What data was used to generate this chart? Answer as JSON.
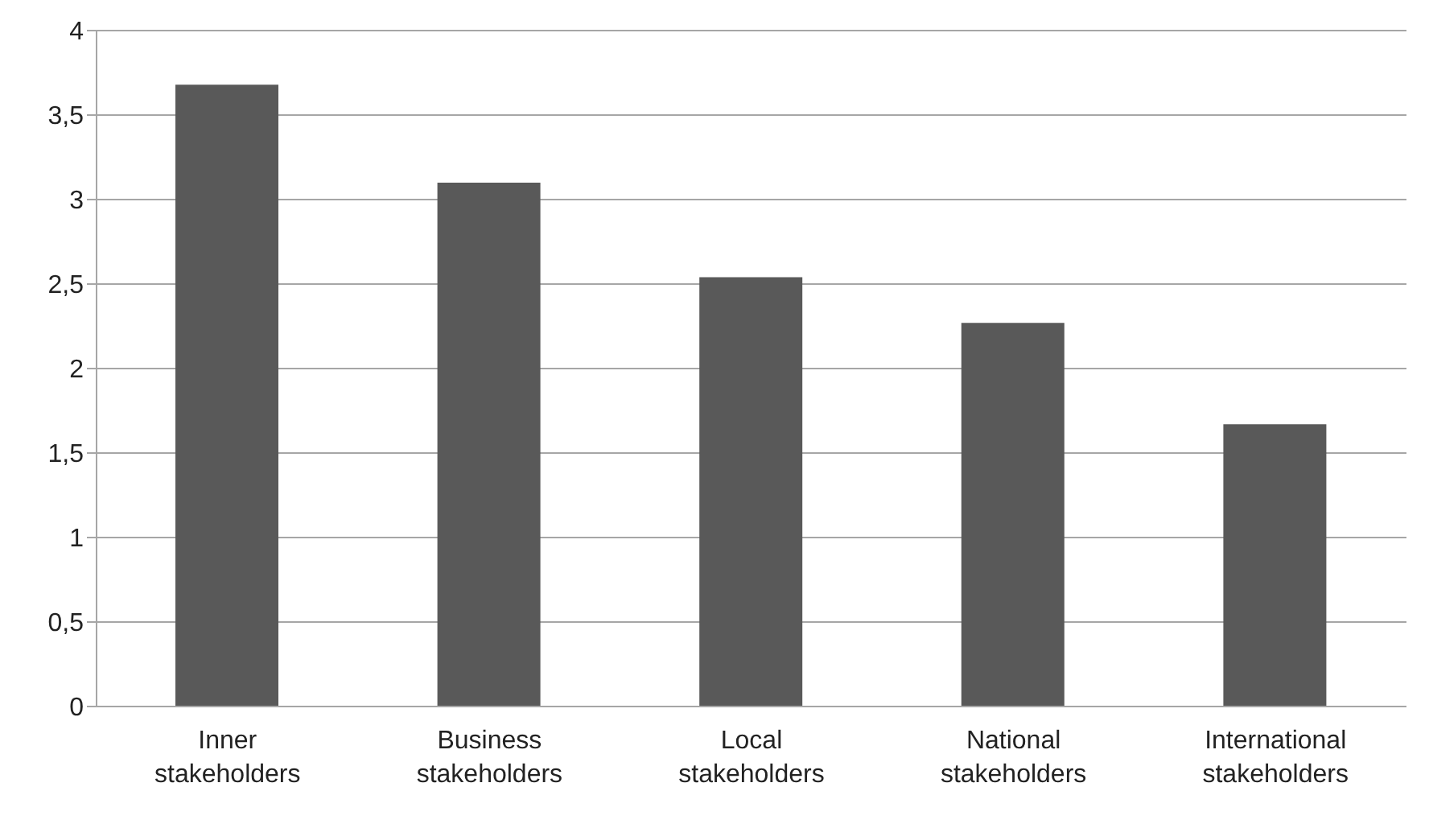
{
  "chart_data": {
    "type": "bar",
    "categories": [
      "Inner stakeholders",
      "Business stakeholders",
      "Local stakeholders",
      "National stakeholders",
      "International stakeholders"
    ],
    "values": [
      3.68,
      3.1,
      2.54,
      2.27,
      1.67
    ],
    "color": "#595959",
    "ylim": [
      0,
      4
    ],
    "yticks": [
      0,
      {
        "value": 0.5,
        "label": "0,5"
      },
      1,
      {
        "value": 1.5,
        "label": "1,5"
      },
      2,
      {
        "value": 2.5,
        "label": "2,5"
      },
      3,
      {
        "value": 3.5,
        "label": "3,5"
      },
      4
    ],
    "grid": "y"
  }
}
